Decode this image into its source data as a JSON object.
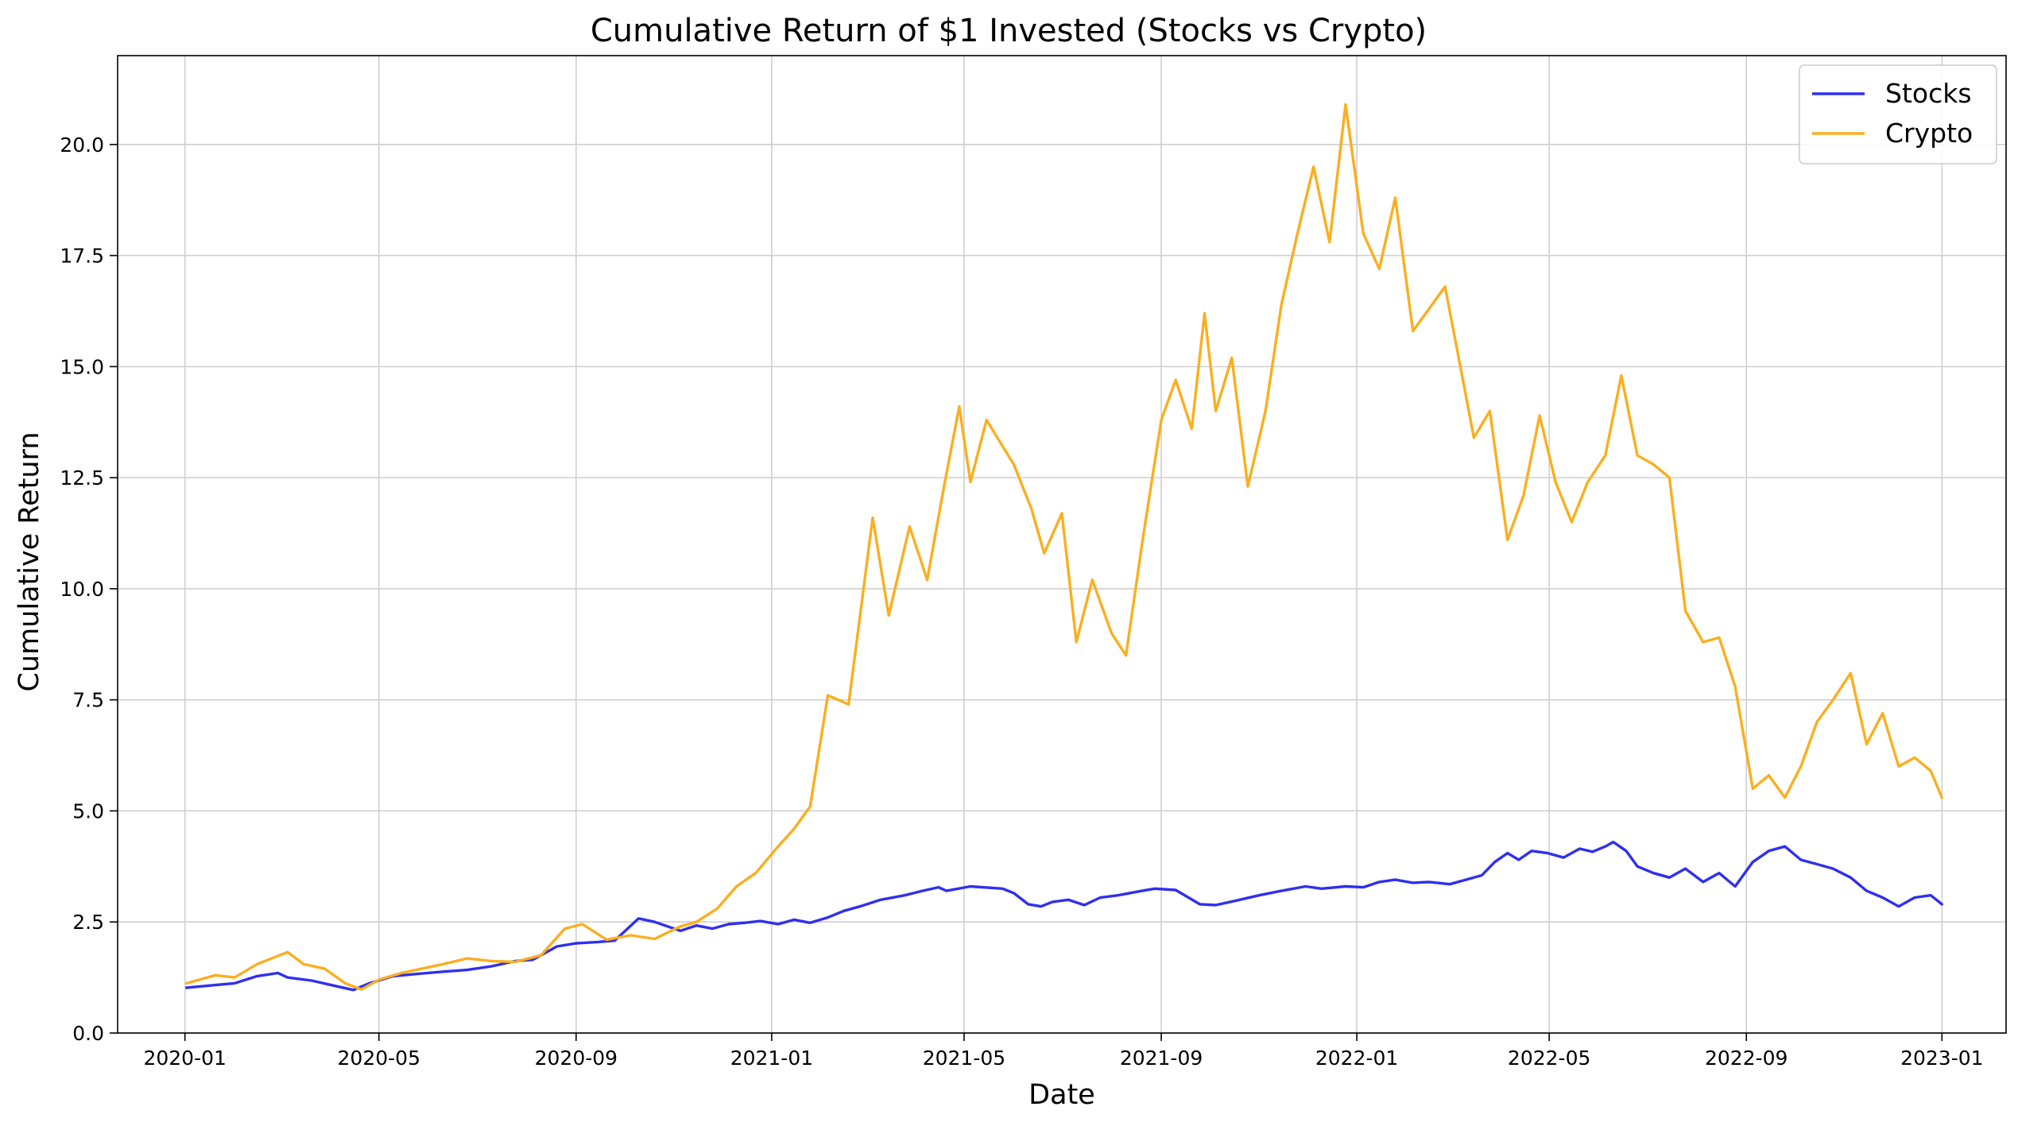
{
  "chart_data": {
    "type": "line",
    "title": "Cumulative Return of $1 Invested (Stocks vs Crypto)",
    "xlabel": "Date",
    "ylabel": "Cumulative Return",
    "xlim": [
      "2019-11-20",
      "2023-02-10"
    ],
    "ylim": [
      0,
      22
    ],
    "x_ticks": [
      "2020-01",
      "2020-05",
      "2020-09",
      "2021-01",
      "2021-05",
      "2021-09",
      "2022-01",
      "2022-05",
      "2022-09",
      "2023-01"
    ],
    "y_ticks": [
      "0.0",
      "2.5",
      "5.0",
      "7.5",
      "10.0",
      "12.5",
      "15.0",
      "17.5",
      "20.0"
    ],
    "grid": true,
    "legend": "top-right",
    "series": [
      {
        "name": "Stocks",
        "color": "#2f2ff0",
        "points": [
          [
            "2020-01-02",
            1.02
          ],
          [
            "2020-01-20",
            1.08
          ],
          [
            "2020-02-01",
            1.12
          ],
          [
            "2020-02-15",
            1.28
          ],
          [
            "2020-02-28",
            1.35
          ],
          [
            "2020-03-05",
            1.25
          ],
          [
            "2020-03-20",
            1.18
          ],
          [
            "2020-04-05",
            1.05
          ],
          [
            "2020-04-15",
            0.97
          ],
          [
            "2020-04-25",
            1.12
          ],
          [
            "2020-05-10",
            1.28
          ],
          [
            "2020-05-25",
            1.33
          ],
          [
            "2020-06-10",
            1.38
          ],
          [
            "2020-06-25",
            1.42
          ],
          [
            "2020-07-10",
            1.5
          ],
          [
            "2020-07-25",
            1.62
          ],
          [
            "2020-08-05",
            1.65
          ],
          [
            "2020-08-20",
            1.95
          ],
          [
            "2020-09-01",
            2.02
          ],
          [
            "2020-09-15",
            2.05
          ],
          [
            "2020-09-25",
            2.08
          ],
          [
            "2020-10-10",
            2.58
          ],
          [
            "2020-10-20",
            2.5
          ],
          [
            "2020-11-05",
            2.3
          ],
          [
            "2020-11-15",
            2.42
          ],
          [
            "2020-11-25",
            2.35
          ],
          [
            "2020-12-05",
            2.45
          ],
          [
            "2020-12-15",
            2.48
          ],
          [
            "2020-12-25",
            2.52
          ],
          [
            "2021-01-05",
            2.45
          ],
          [
            "2021-01-15",
            2.55
          ],
          [
            "2021-01-25",
            2.48
          ],
          [
            "2021-02-05",
            2.6
          ],
          [
            "2021-02-15",
            2.75
          ],
          [
            "2021-02-25",
            2.85
          ],
          [
            "2021-03-10",
            3.0
          ],
          [
            "2021-03-25",
            3.1
          ],
          [
            "2021-04-05",
            3.2
          ],
          [
            "2021-04-15",
            3.28
          ],
          [
            "2021-04-20",
            3.2
          ],
          [
            "2021-05-05",
            3.3
          ],
          [
            "2021-05-25",
            3.25
          ],
          [
            "2021-06-01",
            3.15
          ],
          [
            "2021-06-10",
            2.9
          ],
          [
            "2021-06-18",
            2.85
          ],
          [
            "2021-06-25",
            2.95
          ],
          [
            "2021-07-05",
            3.0
          ],
          [
            "2021-07-15",
            2.88
          ],
          [
            "2021-07-25",
            3.05
          ],
          [
            "2021-08-05",
            3.1
          ],
          [
            "2021-08-20",
            3.2
          ],
          [
            "2021-08-28",
            3.25
          ],
          [
            "2021-09-10",
            3.22
          ],
          [
            "2021-09-25",
            2.9
          ],
          [
            "2021-10-05",
            2.88
          ],
          [
            "2021-10-20",
            3.0
          ],
          [
            "2021-11-01",
            3.1
          ],
          [
            "2021-11-15",
            3.2
          ],
          [
            "2021-11-30",
            3.3
          ],
          [
            "2021-12-10",
            3.25
          ],
          [
            "2021-12-25",
            3.3
          ],
          [
            "2022-01-05",
            3.28
          ],
          [
            "2022-01-15",
            3.4
          ],
          [
            "2022-01-25",
            3.45
          ],
          [
            "2022-02-05",
            3.38
          ],
          [
            "2022-02-15",
            3.4
          ],
          [
            "2022-02-28",
            3.35
          ],
          [
            "2022-03-10",
            3.45
          ],
          [
            "2022-03-20",
            3.55
          ],
          [
            "2022-03-28",
            3.85
          ],
          [
            "2022-04-05",
            4.05
          ],
          [
            "2022-04-12",
            3.9
          ],
          [
            "2022-04-20",
            4.1
          ],
          [
            "2022-04-30",
            4.05
          ],
          [
            "2022-05-10",
            3.95
          ],
          [
            "2022-05-20",
            4.15
          ],
          [
            "2022-05-28",
            4.08
          ],
          [
            "2022-06-05",
            4.2
          ],
          [
            "2022-06-10",
            4.3
          ],
          [
            "2022-06-18",
            4.1
          ],
          [
            "2022-06-25",
            3.75
          ],
          [
            "2022-07-05",
            3.6
          ],
          [
            "2022-07-15",
            3.5
          ],
          [
            "2022-07-25",
            3.7
          ],
          [
            "2022-08-05",
            3.4
          ],
          [
            "2022-08-15",
            3.6
          ],
          [
            "2022-08-25",
            3.3
          ],
          [
            "2022-09-05",
            3.85
          ],
          [
            "2022-09-15",
            4.1
          ],
          [
            "2022-09-25",
            4.2
          ],
          [
            "2022-10-05",
            3.9
          ],
          [
            "2022-10-15",
            3.8
          ],
          [
            "2022-10-25",
            3.7
          ],
          [
            "2022-11-05",
            3.5
          ],
          [
            "2022-11-15",
            3.2
          ],
          [
            "2022-11-25",
            3.05
          ],
          [
            "2022-12-05",
            2.85
          ],
          [
            "2022-12-15",
            3.05
          ],
          [
            "2022-12-25",
            3.1
          ],
          [
            "2023-01-01",
            2.9
          ]
        ]
      },
      {
        "name": "Crypto",
        "color": "#fbae1f",
        "points": [
          [
            "2020-01-02",
            1.12
          ],
          [
            "2020-01-20",
            1.3
          ],
          [
            "2020-02-01",
            1.25
          ],
          [
            "2020-02-15",
            1.55
          ],
          [
            "2020-03-05",
            1.82
          ],
          [
            "2020-03-15",
            1.55
          ],
          [
            "2020-03-28",
            1.45
          ],
          [
            "2020-04-10",
            1.12
          ],
          [
            "2020-04-20",
            0.98
          ],
          [
            "2020-05-01",
            1.2
          ],
          [
            "2020-05-15",
            1.35
          ],
          [
            "2020-05-28",
            1.45
          ],
          [
            "2020-06-10",
            1.55
          ],
          [
            "2020-06-25",
            1.68
          ],
          [
            "2020-07-10",
            1.62
          ],
          [
            "2020-07-25",
            1.6
          ],
          [
            "2020-08-10",
            1.75
          ],
          [
            "2020-08-25",
            2.35
          ],
          [
            "2020-09-05",
            2.45
          ],
          [
            "2020-09-20",
            2.1
          ],
          [
            "2020-10-05",
            2.2
          ],
          [
            "2020-10-20",
            2.12
          ],
          [
            "2020-11-05",
            2.4
          ],
          [
            "2020-11-15",
            2.5
          ],
          [
            "2020-11-28",
            2.8
          ],
          [
            "2020-12-10",
            3.3
          ],
          [
            "2020-12-22",
            3.6
          ],
          [
            "2021-01-05",
            4.2
          ],
          [
            "2021-01-15",
            4.6
          ],
          [
            "2021-01-25",
            5.1
          ],
          [
            "2021-02-05",
            7.6
          ],
          [
            "2021-02-18",
            7.4
          ],
          [
            "2021-03-05",
            11.6
          ],
          [
            "2021-03-15",
            9.4
          ],
          [
            "2021-03-28",
            11.4
          ],
          [
            "2021-04-08",
            10.2
          ],
          [
            "2021-04-18",
            12.2
          ],
          [
            "2021-04-28",
            14.1
          ],
          [
            "2021-05-05",
            12.4
          ],
          [
            "2021-05-15",
            13.8
          ],
          [
            "2021-06-01",
            12.8
          ],
          [
            "2021-06-12",
            11.8
          ],
          [
            "2021-06-20",
            10.8
          ],
          [
            "2021-07-01",
            11.7
          ],
          [
            "2021-07-10",
            8.8
          ],
          [
            "2021-07-20",
            10.2
          ],
          [
            "2021-08-01",
            9.0
          ],
          [
            "2021-08-10",
            8.5
          ],
          [
            "2021-08-20",
            11.0
          ],
          [
            "2021-09-01",
            13.8
          ],
          [
            "2021-09-10",
            14.7
          ],
          [
            "2021-09-20",
            13.6
          ],
          [
            "2021-09-28",
            16.2
          ],
          [
            "2021-10-05",
            14.0
          ],
          [
            "2021-10-15",
            15.2
          ],
          [
            "2021-10-25",
            12.3
          ],
          [
            "2021-11-05",
            14.0
          ],
          [
            "2021-11-15",
            16.4
          ],
          [
            "2021-11-25",
            18.0
          ],
          [
            "2021-12-05",
            19.5
          ],
          [
            "2021-12-15",
            17.8
          ],
          [
            "2021-12-25",
            20.9
          ],
          [
            "2022-01-05",
            18.0
          ],
          [
            "2022-01-15",
            17.2
          ],
          [
            "2022-01-25",
            18.8
          ],
          [
            "2022-02-05",
            15.8
          ],
          [
            "2022-02-15",
            16.3
          ],
          [
            "2022-02-25",
            16.8
          ],
          [
            "2022-03-05",
            15.3
          ],
          [
            "2022-03-15",
            13.4
          ],
          [
            "2022-03-25",
            14.0
          ],
          [
            "2022-04-05",
            11.1
          ],
          [
            "2022-04-15",
            12.1
          ],
          [
            "2022-04-25",
            13.9
          ],
          [
            "2022-05-05",
            12.4
          ],
          [
            "2022-05-15",
            11.5
          ],
          [
            "2022-05-25",
            12.4
          ],
          [
            "2022-06-05",
            13.0
          ],
          [
            "2022-06-15",
            14.8
          ],
          [
            "2022-06-25",
            13.0
          ],
          [
            "2022-07-05",
            12.8
          ],
          [
            "2022-07-15",
            12.5
          ],
          [
            "2022-07-25",
            9.5
          ],
          [
            "2022-08-05",
            8.8
          ],
          [
            "2022-08-15",
            8.9
          ],
          [
            "2022-08-25",
            7.8
          ],
          [
            "2022-09-05",
            5.5
          ],
          [
            "2022-09-15",
            5.8
          ],
          [
            "2022-09-25",
            5.3
          ],
          [
            "2022-10-05",
            6.0
          ],
          [
            "2022-10-15",
            7.0
          ],
          [
            "2022-10-25",
            7.5
          ],
          [
            "2022-11-05",
            8.1
          ],
          [
            "2022-11-15",
            6.5
          ],
          [
            "2022-11-25",
            7.2
          ],
          [
            "2022-12-05",
            6.0
          ],
          [
            "2022-12-15",
            6.2
          ],
          [
            "2022-12-25",
            5.9
          ],
          [
            "2023-01-01",
            5.3
          ]
        ]
      }
    ]
  }
}
